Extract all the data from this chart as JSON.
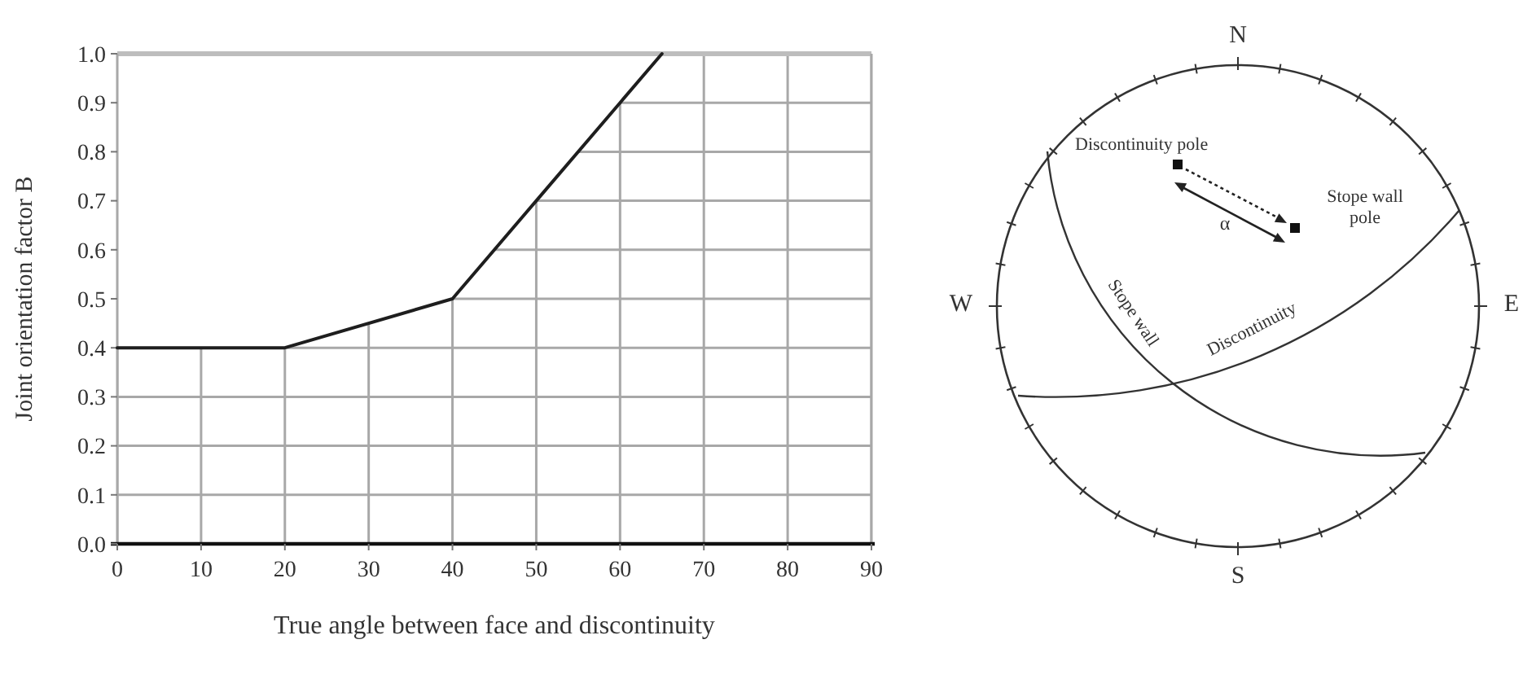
{
  "chart_data": [
    {
      "type": "line",
      "xlabel": "True angle between face and discontinuity",
      "ylabel": "Joint orientation factor B",
      "x": [
        0,
        20,
        40,
        50,
        60,
        65
      ],
      "values": [
        0.4,
        0.4,
        0.5,
        0.7,
        0.9,
        1.0
      ],
      "color": "#1e1e1e",
      "xlim": [
        0,
        90
      ],
      "ylim": [
        0,
        1
      ],
      "xticks": [
        0,
        10,
        20,
        30,
        40,
        50,
        60,
        70,
        80,
        90
      ],
      "yticks": [
        {
          "value": 0,
          "label": "0.0"
        },
        0.1,
        0.2,
        0.3,
        0.4,
        0.5,
        0.6,
        0.7,
        0.8,
        0.9,
        {
          "value": 1,
          "label": "1.0"
        }
      ],
      "grid": true
    },
    {
      "type": "other",
      "annotations": [
        "N",
        "E",
        "S",
        "W",
        "Discontinuity pole",
        "Stope wall pole",
        "α",
        "Stope wall",
        "Discontinuity"
      ]
    }
  ]
}
